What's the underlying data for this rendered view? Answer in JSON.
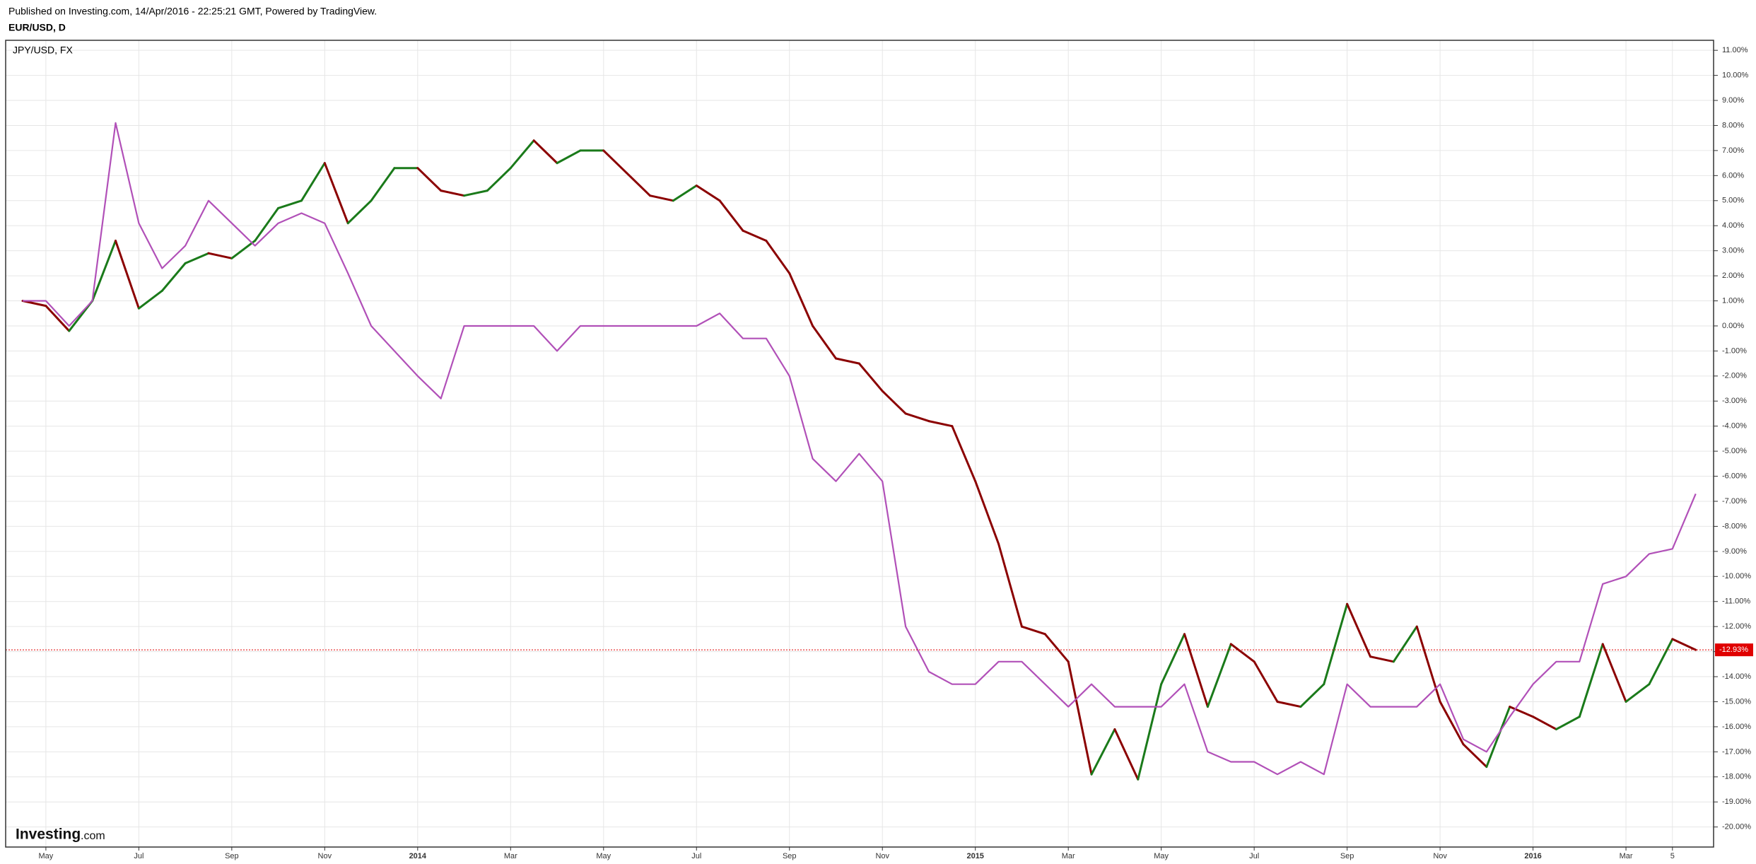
{
  "header": {
    "published": "Published on Investing.com, 14/Apr/2016 - 22:25:21 GMT, Powered by TradingView.",
    "symbol": "EUR/USD, D"
  },
  "logo": {
    "brand": "Investing",
    "suffix": ".com"
  },
  "chart_data": {
    "type": "line",
    "categories": [
      null,
      "May",
      null,
      null,
      null,
      "Jul",
      null,
      null,
      null,
      "Sep",
      null,
      null,
      null,
      "Nov",
      null,
      null,
      null,
      "2014",
      null,
      null,
      null,
      "Mar",
      null,
      null,
      null,
      "May",
      null,
      null,
      null,
      "Jul",
      null,
      null,
      null,
      "Sep",
      null,
      null,
      null,
      "Nov",
      null,
      null,
      null,
      "2015",
      null,
      null,
      null,
      "Mar",
      null,
      null,
      null,
      "May",
      null,
      null,
      null,
      "Jul",
      null,
      null,
      null,
      "Sep",
      null,
      null,
      null,
      "Nov",
      null,
      null,
      null,
      "2016",
      null,
      null,
      null,
      "Mar",
      null,
      "5",
      null
    ],
    "series": [
      {
        "name": "EUR/USD",
        "up_color": "#1a7a1a",
        "down_color": "#8b0000",
        "values": [
          1.0,
          0.8,
          -0.2,
          1.0,
          3.4,
          0.7,
          1.4,
          2.5,
          2.9,
          2.7,
          3.4,
          4.7,
          5.0,
          6.5,
          4.1,
          5.0,
          6.3,
          6.3,
          5.4,
          5.2,
          5.4,
          6.3,
          7.4,
          6.5,
          7.0,
          7.0,
          6.1,
          5.2,
          5.0,
          5.6,
          5.0,
          3.8,
          3.4,
          2.1,
          0.0,
          -1.3,
          -1.5,
          -2.6,
          -3.5,
          -3.8,
          -4.0,
          -6.2,
          -8.7,
          -12.0,
          -12.3,
          -13.4,
          -17.9,
          -16.1,
          -18.1,
          -14.3,
          -12.3,
          -15.2,
          -12.7,
          -13.4,
          -15.0,
          -15.2,
          -14.3,
          -11.1,
          -13.2,
          -13.4,
          -12.0,
          -15.0,
          -16.7,
          -17.6,
          -15.2,
          -15.6,
          -16.1,
          -15.6,
          -12.7,
          -15.0,
          -14.3,
          -12.5,
          -12.93
        ]
      },
      {
        "name": "JPY/USD, FX",
        "color": "#b150b8",
        "values": [
          1.0,
          1.0,
          0.0,
          1.0,
          8.1,
          4.1,
          2.3,
          3.2,
          5.0,
          4.1,
          3.2,
          4.1,
          4.5,
          4.1,
          2.1,
          0.0,
          -1.0,
          -2.0,
          -2.9,
          0.0,
          0.0,
          0.0,
          0.0,
          -1.0,
          0.0,
          0.0,
          0.0,
          0.0,
          0.0,
          0.0,
          0.5,
          -0.5,
          -0.5,
          -2.0,
          -5.3,
          -6.2,
          -5.1,
          -6.2,
          -12.0,
          -13.8,
          -14.3,
          -14.3,
          -13.4,
          -13.4,
          -14.3,
          -15.2,
          -14.3,
          -15.2,
          -15.2,
          -15.2,
          -14.3,
          -17.0,
          -17.4,
          -17.4,
          -17.9,
          -17.4,
          -17.9,
          -14.3,
          -15.2,
          -15.2,
          -15.2,
          -14.3,
          -16.5,
          -17.0,
          -15.6,
          -14.3,
          -13.4,
          -13.4,
          -10.3,
          -10.0,
          -9.1,
          -8.9,
          -6.7
        ]
      }
    ],
    "ylim": [
      -20.8,
      11.4
    ],
    "yticks": [
      {
        "value": 11,
        "label": "11.00%"
      },
      {
        "value": 10,
        "label": "10.00%"
      },
      {
        "value": 9,
        "label": "9.00%"
      },
      {
        "value": 8,
        "label": "8.00%"
      },
      {
        "value": 7,
        "label": "7.00%"
      },
      {
        "value": 6,
        "label": "6.00%"
      },
      {
        "value": 5,
        "label": "5.00%"
      },
      {
        "value": 4,
        "label": "4.00%"
      },
      {
        "value": 3,
        "label": "3.00%"
      },
      {
        "value": 2,
        "label": "2.00%"
      },
      {
        "value": 1,
        "label": "1.00%"
      },
      {
        "value": 0,
        "label": "0.00%"
      },
      {
        "value": -1,
        "label": "-1.00%"
      },
      {
        "value": -2,
        "label": "-2.00%"
      },
      {
        "value": -3,
        "label": "-3.00%"
      },
      {
        "value": -4,
        "label": "-4.00%"
      },
      {
        "value": -5,
        "label": "-5.00%"
      },
      {
        "value": -6,
        "label": "-6.00%"
      },
      {
        "value": -7,
        "label": "-7.00%"
      },
      {
        "value": -8,
        "label": "-8.00%"
      },
      {
        "value": -9,
        "label": "-9.00%"
      },
      {
        "value": -10,
        "label": "-10.00%"
      },
      {
        "value": -11,
        "label": "-11.00%"
      },
      {
        "value": -12,
        "label": "-12.00%"
      },
      {
        "value": -13,
        "label": "-13.00%"
      },
      {
        "value": -14,
        "label": "-14.00%"
      },
      {
        "value": -15,
        "label": "-15.00%"
      },
      {
        "value": -16,
        "label": "-16.00%"
      },
      {
        "value": -17,
        "label": "-17.00%"
      },
      {
        "value": -18,
        "label": "-18.00%"
      },
      {
        "value": -19,
        "label": "-19.00%"
      },
      {
        "value": -20,
        "label": "-20.00%"
      }
    ],
    "grid": true,
    "last_value": {
      "value": -12.93,
      "label": "-12.93%",
      "color": "#e00000"
    }
  }
}
